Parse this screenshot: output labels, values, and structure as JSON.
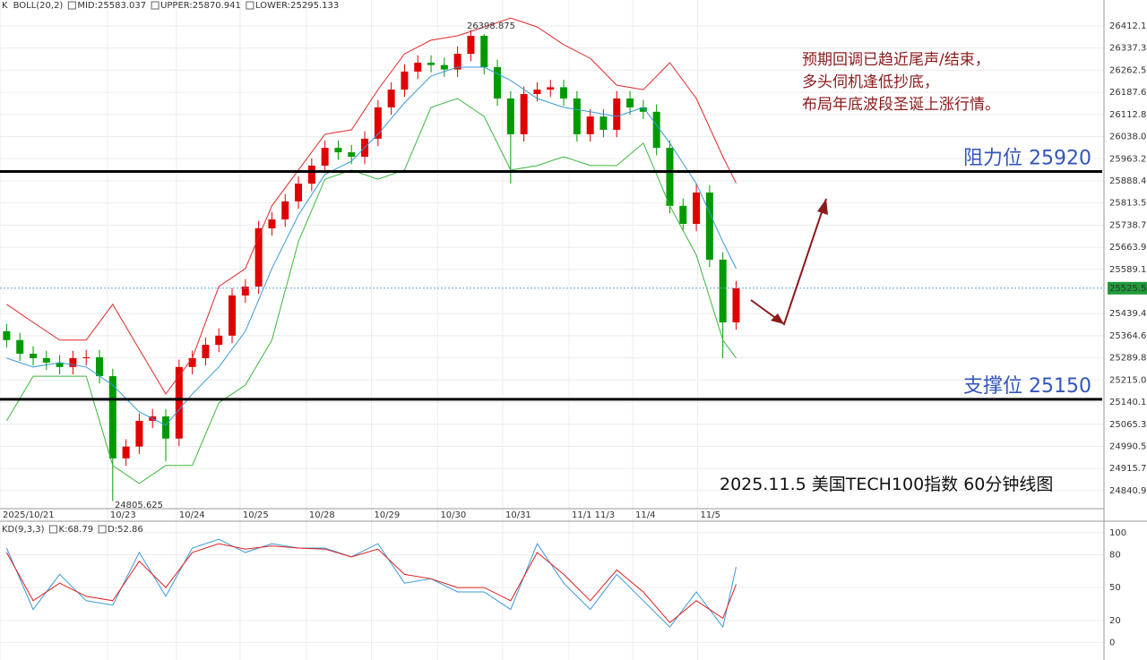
{
  "chart_data": [
    {
      "type": "candlestick",
      "prefix": "K",
      "indicator": "BOLL(20,2)",
      "x": [
        0,
        1,
        2,
        3,
        4,
        5,
        6,
        7,
        8,
        9,
        10,
        11,
        12,
        13,
        14,
        15,
        16,
        17,
        18,
        19,
        20,
        21,
        22,
        23,
        24,
        25,
        26,
        27,
        28,
        29,
        30,
        31,
        32,
        33,
        34,
        35,
        36,
        37,
        38,
        39,
        40,
        41,
        42,
        43,
        44,
        45,
        46,
        47,
        48,
        49,
        50,
        51,
        52,
        53,
        54,
        55
      ],
      "open": [
        25380,
        25350,
        25304,
        25289,
        25274,
        25259,
        25289,
        25292,
        25228,
        24950,
        24990,
        25077,
        25092,
        25017,
        25259,
        25289,
        25334,
        25365,
        25501,
        25531,
        25728,
        25758,
        25819,
        25879,
        25940,
        26000,
        25985,
        25970,
        26031,
        26137,
        26197,
        26258,
        26288,
        26280,
        26265,
        26318,
        26379,
        26273,
        26167,
        26046,
        26182,
        26197,
        26205,
        26167,
        26046,
        26106,
        26061,
        26167,
        26137,
        26122,
        26000,
        25804,
        25743,
        25849,
        25622,
        25410
      ],
      "high": [
        25405,
        25375,
        25329,
        25314,
        25299,
        25314,
        25317,
        25317,
        25253,
        25015,
        25102,
        25117,
        25117,
        25284,
        25314,
        25359,
        25390,
        25526,
        25556,
        25753,
        25783,
        25844,
        25904,
        25965,
        26025,
        26025,
        26010,
        26056,
        26162,
        26222,
        26283,
        26313,
        26313,
        26305,
        26343,
        26398.875,
        26385,
        26298,
        26192,
        26207,
        26222,
        26230,
        26230,
        26192,
        26131,
        26131,
        26192,
        26192,
        26162,
        26147,
        26025,
        25829,
        25880,
        25874,
        25647,
        25550
      ],
      "low": [
        25325,
        25279,
        25264,
        25249,
        25234,
        25234,
        25264,
        25203,
        24805.625,
        24925,
        24965,
        25052,
        24940,
        24992,
        25234,
        25264,
        25309,
        25340,
        25476,
        25506,
        25703,
        25733,
        25794,
        25854,
        25915,
        25960,
        25945,
        25945,
        26006,
        26112,
        26172,
        26233,
        26255,
        26240,
        26240,
        26293,
        26248,
        26142,
        25880,
        26021,
        26157,
        26172,
        26142,
        26021,
        26021,
        26036,
        26036,
        26112,
        26097,
        25975,
        25779,
        25718,
        25718,
        25597,
        25289,
        25385
      ],
      "close": [
        25350,
        25304,
        25289,
        25274,
        25259,
        25289,
        25292,
        25228,
        24950,
        24990,
        25077,
        25092,
        25017,
        25259,
        25289,
        25334,
        25365,
        25501,
        25531,
        25728,
        25758,
        25819,
        25879,
        25940,
        26000,
        25985,
        25970,
        26031,
        26137,
        26197,
        26258,
        26288,
        26280,
        26265,
        26318,
        26379,
        26273,
        26167,
        26046,
        26182,
        26197,
        26205,
        26167,
        26046,
        26106,
        26061,
        26167,
        26137,
        26122,
        26000,
        25804,
        25743,
        25849,
        25622,
        25410,
        25525.5
      ],
      "up_color": "#e00000",
      "down_color": "#009a00",
      "series": [
        {
          "name": "MID:25583.037",
          "color": "#3a9ad9",
          "x": [
            0,
            2,
            4,
            6,
            8,
            10,
            12,
            14,
            16,
            18,
            20,
            22,
            24,
            26,
            28,
            30,
            32,
            34,
            36,
            38,
            40,
            42,
            44,
            46,
            48,
            50,
            52,
            54,
            55
          ],
          "values": [
            25289,
            25259,
            25274,
            25259,
            25198,
            25107,
            25062,
            25168,
            25259,
            25380,
            25592,
            25773,
            25910,
            25955,
            26046,
            26152,
            26243,
            26273,
            26273,
            26228,
            26167,
            26137,
            26122,
            26106,
            26137,
            26016,
            25879,
            25682,
            25592
          ]
        },
        {
          "name": "UPPER:25870.941",
          "color": "#e02828",
          "x": [
            0,
            2,
            4,
            6,
            8,
            10,
            12,
            14,
            16,
            18,
            20,
            22,
            24,
            26,
            28,
            30,
            32,
            34,
            36,
            38,
            40,
            42,
            44,
            46,
            48,
            50,
            52,
            54,
            55
          ],
          "values": [
            25471,
            25410,
            25350,
            25350,
            25471,
            25319,
            25168,
            25289,
            25531,
            25592,
            25804,
            25925,
            26046,
            26061,
            26197,
            26318,
            26364,
            26379,
            26409,
            26439,
            26409,
            26349,
            26303,
            26212,
            26197,
            26288,
            26167,
            25970,
            25880
          ]
        },
        {
          "name": "LOWER:25295.133",
          "color": "#3cb83c",
          "x": [
            0,
            2,
            4,
            6,
            8,
            10,
            12,
            14,
            16,
            18,
            20,
            22,
            24,
            26,
            28,
            30,
            32,
            34,
            36,
            38,
            40,
            42,
            44,
            46,
            48,
            50,
            52,
            54,
            55
          ],
          "values": [
            25077,
            25228,
            25228,
            25228,
            24926,
            24865,
            24926,
            24926,
            25138,
            25198,
            25350,
            25683,
            25894,
            25925,
            25894,
            25925,
            26137,
            26167,
            26106,
            25925,
            25940,
            25970,
            25940,
            25940,
            26016,
            25804,
            25637,
            25350,
            25289
          ]
        }
      ],
      "xlim": [
        -0.5,
        82.6
      ],
      "ylim": [
        24780,
        26500
      ],
      "xticks": [
        {
          "value": -0.5,
          "label": "2025/10/21"
        },
        {
          "value": 7.6,
          "label": "10/23"
        },
        {
          "value": 12.8,
          "label": "10/24"
        },
        {
          "value": 17.6,
          "label": "10/25"
        },
        {
          "value": 22.6,
          "label": "10/28"
        },
        {
          "value": 27.5,
          "label": "10/29"
        },
        {
          "value": 32.5,
          "label": "10/30"
        },
        {
          "value": 37.4,
          "label": "10/31"
        },
        {
          "value": 42.4,
          "label": "11/1 11/3"
        },
        {
          "value": 47.2,
          "label": "11/4"
        },
        {
          "value": 52.1,
          "label": "11/5"
        }
      ],
      "yticks": [
        26412.16,
        26337.34,
        26262.52,
        26187.69,
        26112.87,
        26038.05,
        25963.23,
        25888.41,
        25813.59,
        25738.76,
        25663.94,
        25589.12,
        25439.48,
        25364.65,
        25289.83,
        25215.01,
        25140.19,
        25065.36,
        24990.54,
        24915.72,
        {
          "value": 24840.9,
          "label": "24840.90"
        }
      ],
      "grid": true,
      "last_price": {
        "value": 25525.5,
        "label": "25525.50"
      },
      "levels": [
        {
          "label": "阻力位 25920",
          "value": 25920
        },
        {
          "label": "支撑位 25150",
          "value": 25150
        }
      ],
      "annotations": [
        "预期回调已趋近尾声/结束，",
        "多头伺机逢低抄底，",
        "布局年底波段圣诞上涨行情。"
      ],
      "caption": "2025.11.5 美国TECH100指数 60分钟线图"
    },
    {
      "type": "line",
      "indicator": "KD(9,3,3)",
      "series": [
        {
          "name": "K:68.79",
          "color": "#3a9ad9",
          "x": [
            0,
            2,
            4,
            6,
            8,
            10,
            12,
            14,
            16,
            18,
            20,
            22,
            24,
            26,
            28,
            30,
            32,
            34,
            36,
            38,
            40,
            42,
            44,
            46,
            48,
            50,
            52,
            54,
            55
          ],
          "values": [
            86,
            30,
            62,
            38,
            34,
            82,
            42,
            86,
            94,
            82,
            90,
            86,
            86,
            78,
            90,
            54,
            58,
            46,
            46,
            30,
            90,
            54,
            30,
            62,
            38,
            14,
            46,
            14,
            68.79
          ]
        },
        {
          "name": "D:52.86",
          "color": "#e02020",
          "x": [
            0,
            2,
            4,
            6,
            8,
            10,
            12,
            14,
            16,
            18,
            20,
            22,
            24,
            26,
            28,
            30,
            32,
            34,
            36,
            38,
            40,
            42,
            44,
            46,
            48,
            50,
            52,
            54,
            55
          ],
          "values": [
            82,
            38,
            54,
            42,
            38,
            74,
            50,
            82,
            90,
            85,
            88,
            86,
            85,
            78,
            85,
            62,
            58,
            50,
            50,
            38,
            82,
            62,
            38,
            66,
            46,
            18,
            38,
            22,
            52.86
          ]
        }
      ],
      "xlim": [
        -0.5,
        82.6
      ],
      "ylim": [
        -16,
        110.5
      ],
      "yticks": [
        100,
        80,
        50,
        20,
        0
      ],
      "grid": true
    }
  ]
}
